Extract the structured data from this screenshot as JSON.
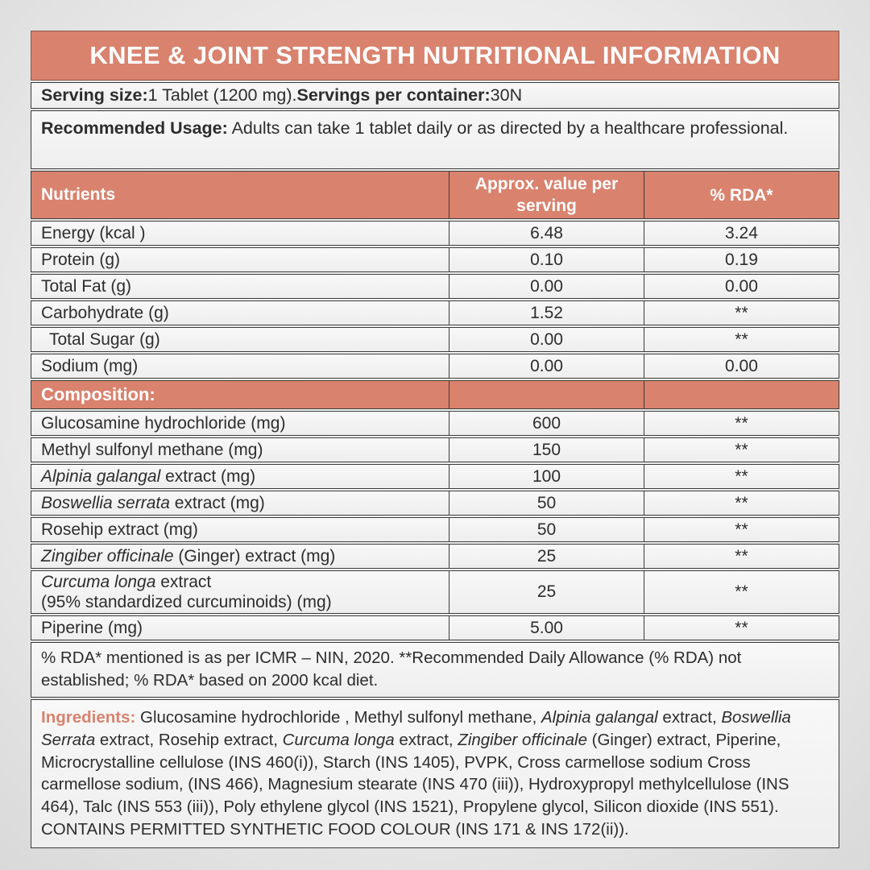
{
  "colors": {
    "accent": "#D9826E",
    "border": "#3B3B3B",
    "text": "#2D2D2D",
    "header_text": "#FFFFFF"
  },
  "header": {
    "title": "KNEE & JOINT STRENGTH NUTRITIONAL INFORMATION"
  },
  "serving": {
    "size_label": "Serving size:",
    "size_value": " 1 Tablet (1200 mg). ",
    "container_label": "Servings per container:",
    "container_value": "30N"
  },
  "usage": {
    "label": "Recommended Usage:",
    "text": " Adults can take 1 tablet daily or as directed by a healthcare professional."
  },
  "table": {
    "headers": {
      "nutrients": "Nutrients",
      "value": "Approx. value per serving",
      "rda": "% RDA*"
    },
    "nutrient_rows": [
      {
        "name": "Energy (kcal )",
        "value": "6.48",
        "rda": "3.24"
      },
      {
        "name": "Protein (g)",
        "value": "0.10",
        "rda": "0.19"
      },
      {
        "name": "Total Fat (g)",
        "value": "0.00",
        "rda": "0.00"
      },
      {
        "name": "Carbohydrate (g)",
        "value": "1.52",
        "rda": "**"
      },
      {
        "name": "Total Sugar (g)",
        "value": "0.00",
        "rda": "**"
      },
      {
        "name": "Sodium (mg)",
        "value": "0.00",
        "rda": "0.00"
      }
    ],
    "composition_label": "Composition:",
    "composition_rows": [
      {
        "italic": "",
        "rest": "Glucosamine hydrochloride (mg)",
        "value": "600",
        "rda": "**"
      },
      {
        "italic": "",
        "rest": "Methyl sulfonyl methane (mg)",
        "value": "150",
        "rda": "**"
      },
      {
        "italic": "Alpinia galangal",
        "rest": " extract (mg)",
        "value": "100",
        "rda": "**"
      },
      {
        "italic": "Boswellia serrata",
        "rest": " extract (mg)",
        "value": "50",
        "rda": "**"
      },
      {
        "italic": "",
        "rest": "Rosehip extract (mg)",
        "value": "50",
        "rda": "**"
      },
      {
        "italic": "Zingiber officinale",
        "rest": " (Ginger) extract (mg)",
        "value": "25",
        "rda": "**"
      },
      {
        "italic": "Curcuma longa",
        "rest": " extract",
        "line2": "(95% standardized curcuminoids) (mg)",
        "value": "25",
        "rda": "**"
      },
      {
        "italic": "",
        "rest": "Piperine (mg)",
        "value": "5.00",
        "rda": "**"
      }
    ]
  },
  "notes": {
    "rda_note": "% RDA* mentioned is as per ICMR – NIN, 2020. **Recommended Daily Allowance (% RDA) not established; % RDA* based on 2000 kcal diet."
  },
  "ingredients": {
    "label": "Ingredients:",
    "parts": [
      {
        "text": " Glucosamine hydrochloride , Methyl sulfonyl methane, "
      },
      {
        "text": "Alpinia galangal",
        "italic": true
      },
      {
        "text": " extract, "
      },
      {
        "text": "Boswellia Serrata",
        "italic": true
      },
      {
        "text": " extract, Rosehip extract, "
      },
      {
        "text": "Curcuma longa",
        "italic": true
      },
      {
        "text": " extract, "
      },
      {
        "text": "Zingiber officinale",
        "italic": true
      },
      {
        "text": " (Ginger) extract, Piperine, Microcrystalline cellulose (INS 460(i)), Starch (INS 1405), PVPK, Cross carmellose sodium Cross carmellose sodium, (INS 466), Magnesium stearate (INS 470 (iii)), Hydroxypropyl methylcellulose (INS 464), Talc (INS 553 (iii)), Poly ethylene glycol (INS 1521), Propylene glycol, Silicon dioxide (INS 551). CONTAINS PERMITTED SYNTHETIC FOOD COLOUR (INS 171 & INS 172(ii))."
      }
    ]
  }
}
